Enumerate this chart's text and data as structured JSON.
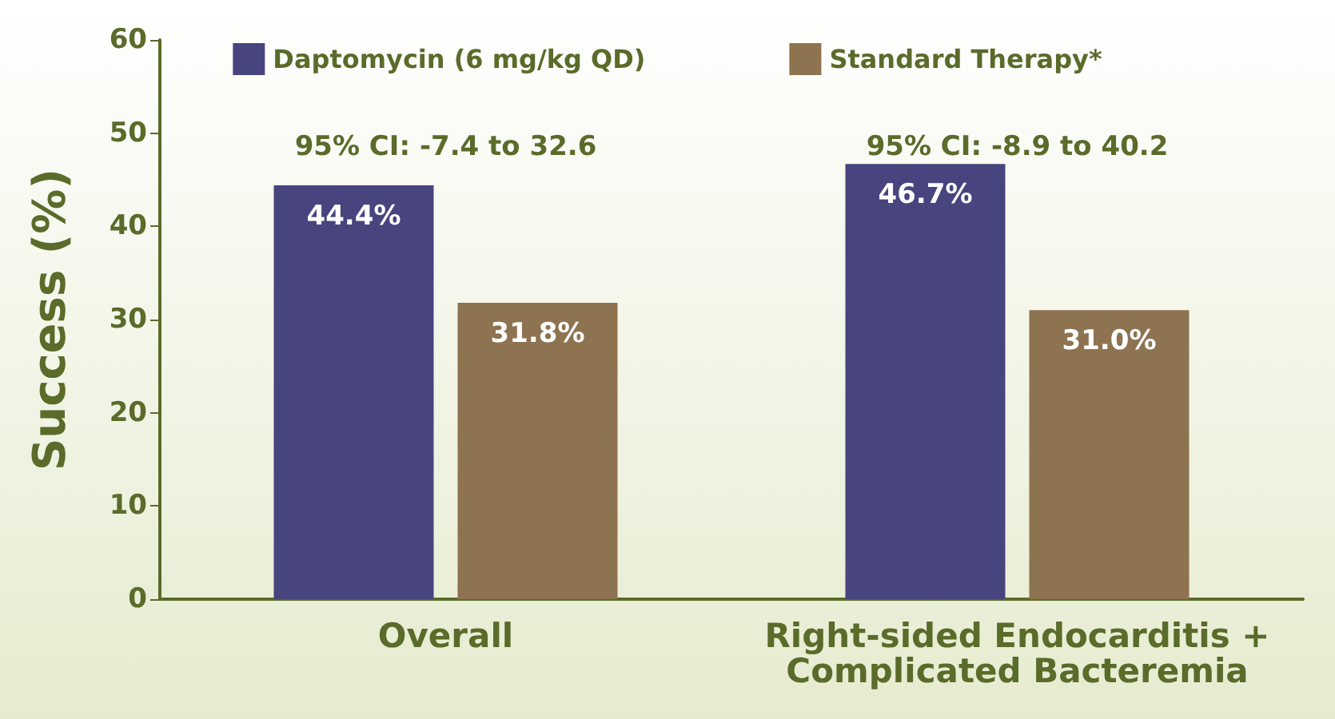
{
  "chart_data": {
    "type": "bar",
    "ylabel": "Success (%)",
    "categories": [
      "Overall",
      "Right-sided Endocarditis +\nComplicated Bacteremia"
    ],
    "series": [
      {
        "name": "Daptomycin (6 mg/kg QD)",
        "color": "#48447e",
        "values": [
          44.4,
          46.7
        ],
        "value_labels": [
          "44.4%",
          "46.7%"
        ]
      },
      {
        "name": "Standard Therapy*",
        "color": "#8e7350",
        "values": [
          31.8,
          31.0
        ],
        "value_labels": [
          "31.8%",
          "31.0%"
        ]
      }
    ],
    "ylim": [
      0,
      60
    ],
    "yticks": [
      0,
      10,
      20,
      30,
      40,
      50,
      60
    ],
    "grid": false,
    "legend": "top",
    "annotations": [
      "95% CI: -7.4 to 32.6",
      "95% CI: -8.9 to 40.2"
    ]
  }
}
